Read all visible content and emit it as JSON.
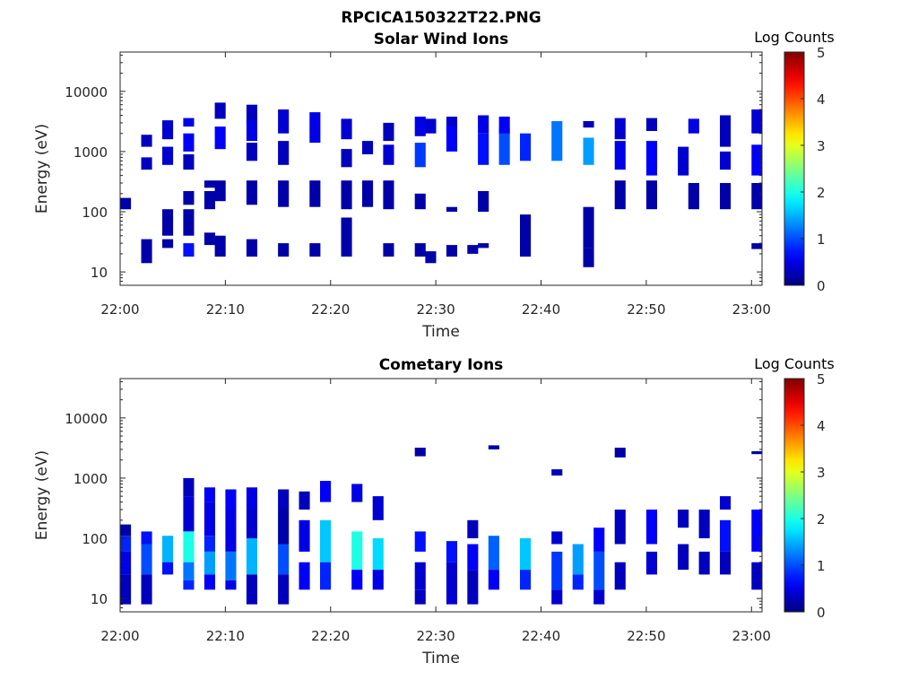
{
  "figure": {
    "title": "RPCICA150322T22.PNG"
  },
  "colormap": {
    "name": "jet",
    "label": "Log Counts",
    "range": [
      0,
      5
    ],
    "ticks": [
      "0",
      "1",
      "2",
      "3",
      "4",
      "5"
    ]
  },
  "chart_data": [
    {
      "type": "heatmap",
      "title": "Solar Wind Ions",
      "xlabel": "Time",
      "ylabel": "Energy (eV)",
      "yscale": "log",
      "xlim": [
        "22:00",
        "23:01"
      ],
      "ylim": [
        6,
        45000
      ],
      "xticks": [
        "22:00",
        "22:10",
        "22:20",
        "22:30",
        "22:40",
        "22:50",
        "23:00"
      ],
      "yticks": [
        "10",
        "100",
        "1000",
        "10000"
      ],
      "cells": [
        [
          "22:00",
          110,
          170,
          0.2
        ],
        [
          "22:02",
          1200,
          1900,
          0.3
        ],
        [
          "22:02",
          500,
          800,
          0.3
        ],
        [
          "22:02",
          14,
          35,
          0.2
        ],
        [
          "22:04",
          1600,
          3300,
          0.4
        ],
        [
          "22:04",
          600,
          1200,
          0.4
        ],
        [
          "22:04",
          40,
          110,
          0.2
        ],
        [
          "22:04",
          25,
          35,
          0.2
        ],
        [
          "22:06",
          2600,
          3600,
          0.5
        ],
        [
          "22:06",
          1000,
          2000,
          0.6
        ],
        [
          "22:06",
          500,
          900,
          0.3
        ],
        [
          "22:06",
          130,
          220,
          0.2
        ],
        [
          "22:06",
          40,
          110,
          0.2
        ],
        [
          "22:06",
          18,
          30,
          0.7
        ],
        [
          "22:08",
          250,
          330,
          0.2
        ],
        [
          "22:08",
          110,
          220,
          0.2
        ],
        [
          "22:08",
          28,
          45,
          0.2
        ],
        [
          "22:09",
          3500,
          6500,
          0.3
        ],
        [
          "22:09",
          1100,
          2600,
          0.6
        ],
        [
          "22:09",
          150,
          330,
          0.2
        ],
        [
          "22:09",
          18,
          40,
          0.2
        ],
        [
          "22:12",
          3000,
          6000,
          0.3
        ],
        [
          "22:12",
          1500,
          3300,
          0.5
        ],
        [
          "22:12",
          700,
          1400,
          0.3
        ],
        [
          "22:12",
          130,
          330,
          0.2
        ],
        [
          "22:12",
          18,
          35,
          0.2
        ],
        [
          "22:15",
          2000,
          5000,
          0.4
        ],
        [
          "22:15",
          600,
          1500,
          0.3
        ],
        [
          "22:15",
          120,
          330,
          0.2
        ],
        [
          "22:15",
          18,
          30,
          0.2
        ],
        [
          "22:18",
          1400,
          4500,
          0.5
        ],
        [
          "22:18",
          120,
          330,
          0.2
        ],
        [
          "22:18",
          18,
          30,
          0.2
        ],
        [
          "22:21",
          1600,
          3500,
          0.4
        ],
        [
          "22:21",
          550,
          1100,
          0.3
        ],
        [
          "22:21",
          110,
          330,
          0.2
        ],
        [
          "22:21",
          18,
          80,
          0.2
        ],
        [
          "22:23",
          900,
          1500,
          0.3
        ],
        [
          "22:23",
          120,
          330,
          0.2
        ],
        [
          "22:25",
          1500,
          3000,
          0.3
        ],
        [
          "22:25",
          600,
          1300,
          0.4
        ],
        [
          "22:25",
          110,
          330,
          0.2
        ],
        [
          "22:25",
          18,
          30,
          0.2
        ],
        [
          "22:28",
          1800,
          3800,
          0.5
        ],
        [
          "22:28",
          550,
          1400,
          0.9
        ],
        [
          "22:28",
          110,
          200,
          0.2
        ],
        [
          "22:28",
          18,
          30,
          0.2
        ],
        [
          "22:29",
          2000,
          3500,
          0.4
        ],
        [
          "22:29",
          14,
          22,
          0.2
        ],
        [
          "22:31",
          2200,
          3800,
          0.4
        ],
        [
          "22:31",
          1000,
          2600,
          0.6
        ],
        [
          "22:31",
          100,
          120,
          0.2
        ],
        [
          "22:31",
          18,
          28,
          0.2
        ],
        [
          "22:33",
          20,
          28,
          0.2
        ],
        [
          "22:34",
          2000,
          4000,
          0.5
        ],
        [
          "22:34",
          600,
          2000,
          0.7
        ],
        [
          "22:34",
          100,
          220,
          0.2
        ],
        [
          "22:34",
          25,
          30,
          0.2
        ],
        [
          "22:36",
          600,
          2400,
          1.0
        ],
        [
          "22:36",
          2000,
          3800,
          0.6
        ],
        [
          "22:38",
          700,
          2000,
          0.8
        ],
        [
          "22:38",
          18,
          90,
          0.2
        ],
        [
          "22:41",
          700,
          3200,
          1.2
        ],
        [
          "22:44",
          600,
          1700,
          1.4
        ],
        [
          "22:44",
          2500,
          3200,
          0.3
        ],
        [
          "22:44",
          25,
          120,
          0.2
        ],
        [
          "22:44",
          12,
          25,
          0.2
        ],
        [
          "22:47",
          1600,
          3600,
          0.4
        ],
        [
          "22:47",
          500,
          1500,
          0.5
        ],
        [
          "22:47",
          110,
          330,
          0.2
        ],
        [
          "22:50",
          2200,
          3600,
          0.3
        ],
        [
          "22:50",
          400,
          1500,
          0.6
        ],
        [
          "22:50",
          110,
          330,
          0.2
        ],
        [
          "22:53",
          400,
          1200,
          0.4
        ],
        [
          "22:54",
          2000,
          3500,
          0.5
        ],
        [
          "22:54",
          110,
          300,
          0.2
        ],
        [
          "22:57",
          1200,
          4000,
          0.3
        ],
        [
          "22:57",
          500,
          1000,
          0.4
        ],
        [
          "22:57",
          110,
          300,
          0.2
        ],
        [
          "23:00",
          2000,
          5000,
          0.4
        ],
        [
          "23:00",
          400,
          1300,
          0.6
        ],
        [
          "23:00",
          110,
          300,
          0.2
        ],
        [
          "23:00",
          24,
          30,
          0.2
        ]
      ]
    },
    {
      "type": "heatmap",
      "title": "Cometary Ions",
      "xlabel": "Time",
      "ylabel": "Energy (eV)",
      "yscale": "log",
      "xlim": [
        "22:00",
        "23:01"
      ],
      "ylim": [
        6,
        45000
      ],
      "xticks": [
        "22:00",
        "22:10",
        "22:20",
        "22:30",
        "22:40",
        "22:50",
        "23:00"
      ],
      "yticks": [
        "10",
        "100",
        "1000",
        "10000"
      ],
      "cells": [
        [
          "22:00",
          110,
          170,
          0.2
        ],
        [
          "22:00",
          60,
          110,
          0.8
        ],
        [
          "22:00",
          25,
          60,
          0.5
        ],
        [
          "22:00",
          8,
          25,
          0.3
        ],
        [
          "22:02",
          80,
          130,
          0.7
        ],
        [
          "22:02",
          25,
          80,
          1.0
        ],
        [
          "22:02",
          8,
          25,
          0.3
        ],
        [
          "22:04",
          40,
          110,
          1.5
        ],
        [
          "22:04",
          25,
          40,
          0.7
        ],
        [
          "22:06",
          500,
          1000,
          0.3
        ],
        [
          "22:06",
          130,
          500,
          0.4
        ],
        [
          "22:06",
          40,
          130,
          2.0
        ],
        [
          "22:06",
          20,
          40,
          1.2
        ],
        [
          "22:06",
          14,
          20,
          0.8
        ],
        [
          "22:08",
          400,
          700,
          0.6
        ],
        [
          "22:08",
          110,
          400,
          0.5
        ],
        [
          "22:08",
          60,
          110,
          0.8
        ],
        [
          "22:08",
          25,
          60,
          1.4
        ],
        [
          "22:08",
          14,
          25,
          0.6
        ],
        [
          "22:10",
          300,
          650,
          0.6
        ],
        [
          "22:10",
          60,
          300,
          0.5
        ],
        [
          "22:10",
          20,
          60,
          1.2
        ],
        [
          "22:10",
          14,
          20,
          0.5
        ],
        [
          "22:12",
          300,
          700,
          0.5
        ],
        [
          "22:12",
          100,
          300,
          0.4
        ],
        [
          "22:12",
          25,
          100,
          1.5
        ],
        [
          "22:12",
          8,
          25,
          0.3
        ],
        [
          "22:15",
          300,
          650,
          0.3
        ],
        [
          "22:15",
          80,
          300,
          0.2
        ],
        [
          "22:15",
          25,
          80,
          1.0
        ],
        [
          "22:15",
          8,
          25,
          0.3
        ],
        [
          "22:17",
          300,
          600,
          0.3
        ],
        [
          "22:17",
          60,
          200,
          0.5
        ],
        [
          "22:17",
          14,
          40,
          0.6
        ],
        [
          "22:19",
          400,
          900,
          0.6
        ],
        [
          "22:19",
          40,
          200,
          1.6
        ],
        [
          "22:19",
          14,
          40,
          0.8
        ],
        [
          "22:22",
          400,
          800,
          0.5
        ],
        [
          "22:22",
          30,
          130,
          2.0
        ],
        [
          "22:22",
          14,
          30,
          0.6
        ],
        [
          "22:24",
          200,
          500,
          0.4
        ],
        [
          "22:24",
          30,
          100,
          1.7
        ],
        [
          "22:24",
          14,
          30,
          0.5
        ],
        [
          "22:28",
          2300,
          3200,
          0.2
        ],
        [
          "22:28",
          60,
          130,
          0.7
        ],
        [
          "22:28",
          14,
          40,
          0.4
        ],
        [
          "22:28",
          8,
          14,
          0.3
        ],
        [
          "22:31",
          40,
          90,
          0.7
        ],
        [
          "22:31",
          8,
          40,
          0.4
        ],
        [
          "22:33",
          100,
          200,
          0.3
        ],
        [
          "22:33",
          30,
          80,
          0.6
        ],
        [
          "22:33",
          8,
          30,
          0.3
        ],
        [
          "22:35",
          3000,
          3500,
          0.2
        ],
        [
          "22:35",
          30,
          110,
          1.1
        ],
        [
          "22:35",
          14,
          30,
          0.6
        ],
        [
          "22:38",
          30,
          100,
          1.6
        ],
        [
          "22:38",
          14,
          30,
          0.8
        ],
        [
          "22:41",
          1100,
          1400,
          0.3
        ],
        [
          "22:41",
          80,
          130,
          0.4
        ],
        [
          "22:41",
          14,
          60,
          0.9
        ],
        [
          "22:41",
          8,
          14,
          0.4
        ],
        [
          "22:43",
          25,
          80,
          1.4
        ],
        [
          "22:43",
          14,
          25,
          0.8
        ],
        [
          "22:45",
          60,
          150,
          0.6
        ],
        [
          "22:45",
          14,
          60,
          1.0
        ],
        [
          "22:45",
          8,
          14,
          0.4
        ],
        [
          "22:47",
          2200,
          3200,
          0.2
        ],
        [
          "22:47",
          80,
          300,
          0.3
        ],
        [
          "22:47",
          14,
          40,
          0.3
        ],
        [
          "22:50",
          80,
          300,
          0.6
        ],
        [
          "22:50",
          25,
          60,
          0.4
        ],
        [
          "22:53",
          150,
          300,
          0.3
        ],
        [
          "22:53",
          30,
          80,
          0.3
        ],
        [
          "22:55",
          100,
          300,
          0.3
        ],
        [
          "22:55",
          25,
          60,
          0.3
        ],
        [
          "22:57",
          300,
          500,
          0.4
        ],
        [
          "22:57",
          60,
          200,
          0.7
        ],
        [
          "22:57",
          25,
          60,
          0.3
        ],
        [
          "23:00",
          2500,
          2800,
          0.2
        ],
        [
          "23:00",
          60,
          300,
          0.6
        ],
        [
          "23:00",
          14,
          40,
          0.3
        ]
      ]
    }
  ]
}
